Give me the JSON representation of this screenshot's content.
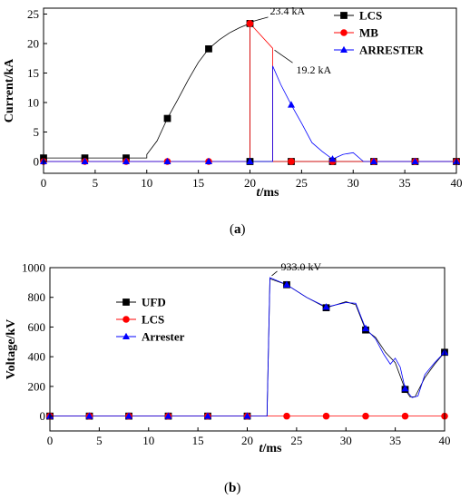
{
  "chart_data": [
    {
      "type": "line",
      "caption_prefix": "(",
      "caption_letter": "a",
      "caption_suffix": ")",
      "ylabel": "Current/kA",
      "xlabel_var": "t",
      "xlabel_unit": "/ms",
      "xlim": [
        0,
        40
      ],
      "ylim": [
        -2,
        26
      ],
      "xticks": [
        0,
        5,
        10,
        15,
        20,
        25,
        30,
        35,
        40
      ],
      "yticks": [
        0,
        5,
        10,
        15,
        20,
        25
      ],
      "legend": {
        "placement": "top-right"
      },
      "series": [
        {
          "name": "LCS",
          "color": "#000000",
          "marker": "square",
          "points": [
            [
              0,
              0.6
            ],
            [
              4,
              0.6
            ],
            [
              8,
              0.6
            ],
            [
              10,
              0.6
            ],
            [
              10,
              1.2
            ],
            [
              11,
              3.5
            ],
            [
              12,
              7.3
            ],
            [
              13,
              10.5
            ],
            [
              14,
              13.8
            ],
            [
              15,
              16.8
            ],
            [
              16,
              19.1
            ],
            [
              17,
              20.6
            ],
            [
              18,
              21.8
            ],
            [
              19,
              22.7
            ],
            [
              20,
              23.4
            ],
            [
              20,
              0
            ],
            [
              22,
              0
            ],
            [
              24,
              0
            ],
            [
              28,
              0
            ],
            [
              32,
              0
            ],
            [
              36,
              0
            ],
            [
              40,
              0
            ]
          ],
          "markers": [
            [
              0,
              0.6
            ],
            [
              4,
              0.6
            ],
            [
              8,
              0.6
            ],
            [
              12,
              7.3
            ],
            [
              16,
              19.1
            ],
            [
              20,
              23.4
            ],
            [
              20,
              0
            ],
            [
              24,
              0
            ],
            [
              28,
              0
            ],
            [
              32,
              0
            ],
            [
              36,
              0
            ],
            [
              40,
              0
            ]
          ]
        },
        {
          "name": "MB",
          "color": "#ff0000",
          "marker": "circle",
          "points": [
            [
              0,
              0
            ],
            [
              20,
              0
            ],
            [
              20,
              23.4
            ],
            [
              22.2,
              19.2
            ],
            [
              22.2,
              0
            ],
            [
              40,
              0
            ]
          ],
          "markers": [
            [
              0,
              0
            ],
            [
              4,
              0
            ],
            [
              8,
              0
            ],
            [
              12,
              0
            ],
            [
              16,
              0
            ],
            [
              20,
              23.4
            ],
            [
              24,
              0
            ],
            [
              28,
              0
            ],
            [
              32,
              0
            ],
            [
              36,
              0
            ],
            [
              40,
              0
            ]
          ]
        },
        {
          "name": "ARRESTER",
          "color": "#0000ff",
          "marker": "triangle",
          "points": [
            [
              0,
              0
            ],
            [
              22.2,
              0
            ],
            [
              22.2,
              16.2
            ],
            [
              23,
              13
            ],
            [
              24,
              9.6
            ],
            [
              25,
              6.5
            ],
            [
              26,
              3.2
            ],
            [
              27,
              1.7
            ],
            [
              28,
              0.4
            ],
            [
              29,
              1.2
            ],
            [
              30,
              1.5
            ],
            [
              31,
              0
            ],
            [
              40,
              0
            ]
          ],
          "markers": [
            [
              0,
              0
            ],
            [
              4,
              0
            ],
            [
              8,
              0
            ],
            [
              12,
              0
            ],
            [
              16,
              0
            ],
            [
              20,
              0
            ],
            [
              24,
              9.6
            ],
            [
              28,
              0.4
            ],
            [
              32,
              0
            ],
            [
              36,
              0
            ],
            [
              40,
              0
            ]
          ]
        }
      ],
      "annotations": [
        {
          "text": "23.4 kA",
          "x": 20,
          "y": 23.4
        },
        {
          "text": "19.2 kA",
          "x": 22.2,
          "y": 19.2
        }
      ]
    },
    {
      "type": "line",
      "caption_prefix": "(",
      "caption_letter": "b",
      "caption_suffix": ")",
      "ylabel": "Voltage/kV",
      "xlabel_var": "t",
      "xlabel_unit": "/ms",
      "xlim": [
        0,
        40
      ],
      "ylim": [
        -100,
        1000
      ],
      "xticks": [
        0,
        5,
        10,
        15,
        20,
        25,
        30,
        35,
        40
      ],
      "yticks": [
        0,
        200,
        400,
        600,
        800,
        1000
      ],
      "legend": {
        "placement": "center-left"
      },
      "series": [
        {
          "name": "UFD",
          "color": "#000000",
          "marker": "square",
          "points": [
            [
              0,
              0
            ],
            [
              22,
              0
            ],
            [
              22.3,
              925
            ],
            [
              24,
              885
            ],
            [
              26,
              800
            ],
            [
              28,
              730
            ],
            [
              30,
              770
            ],
            [
              31,
              750
            ],
            [
              32,
              580
            ],
            [
              33,
              530
            ],
            [
              34,
              430
            ],
            [
              35,
              360
            ],
            [
              36,
              180
            ],
            [
              36.5,
              130
            ],
            [
              37,
              130
            ],
            [
              38,
              260
            ],
            [
              39,
              350
            ],
            [
              40,
              430
            ]
          ],
          "markers": [
            [
              0,
              0
            ],
            [
              4,
              0
            ],
            [
              8,
              0
            ],
            [
              12,
              0
            ],
            [
              16,
              0
            ],
            [
              20,
              0
            ],
            [
              24,
              885
            ],
            [
              28,
              730
            ],
            [
              32,
              580
            ],
            [
              36,
              180
            ],
            [
              40,
              430
            ]
          ]
        },
        {
          "name": "LCS",
          "color": "#ff0000",
          "marker": "circle",
          "points": [
            [
              0,
              0
            ],
            [
              40,
              0
            ]
          ],
          "markers": [
            [
              0,
              0
            ],
            [
              4,
              0
            ],
            [
              8,
              0
            ],
            [
              12,
              0
            ],
            [
              16,
              0
            ],
            [
              20,
              0
            ],
            [
              24,
              0
            ],
            [
              28,
              0
            ],
            [
              32,
              0
            ],
            [
              36,
              0
            ],
            [
              40,
              0
            ]
          ]
        },
        {
          "name": "Arrester",
          "color": "#0000ff",
          "marker": "triangle",
          "points": [
            [
              0,
              0
            ],
            [
              22,
              0
            ],
            [
              22.3,
              933
            ],
            [
              24,
              885
            ],
            [
              26,
              800
            ],
            [
              28,
              735
            ],
            [
              30,
              765
            ],
            [
              31,
              760
            ],
            [
              32,
              590
            ],
            [
              33,
              520
            ],
            [
              33.8,
              420
            ],
            [
              34.5,
              350
            ],
            [
              35,
              390
            ],
            [
              35.5,
              330
            ],
            [
              36,
              185
            ],
            [
              36.7,
              125
            ],
            [
              37.3,
              135
            ],
            [
              38,
              280
            ],
            [
              39,
              360
            ],
            [
              40,
              430
            ]
          ],
          "markers": [
            [
              0,
              0
            ],
            [
              4,
              0
            ],
            [
              8,
              0
            ],
            [
              12,
              0
            ],
            [
              16,
              0
            ],
            [
              20,
              0
            ],
            [
              24,
              885
            ],
            [
              28,
              735
            ],
            [
              32,
              590
            ],
            [
              36,
              185
            ],
            [
              40,
              430
            ]
          ]
        }
      ],
      "annotations": [
        {
          "text": "933.0 kV",
          "x": 22.3,
          "y": 933
        }
      ]
    }
  ]
}
